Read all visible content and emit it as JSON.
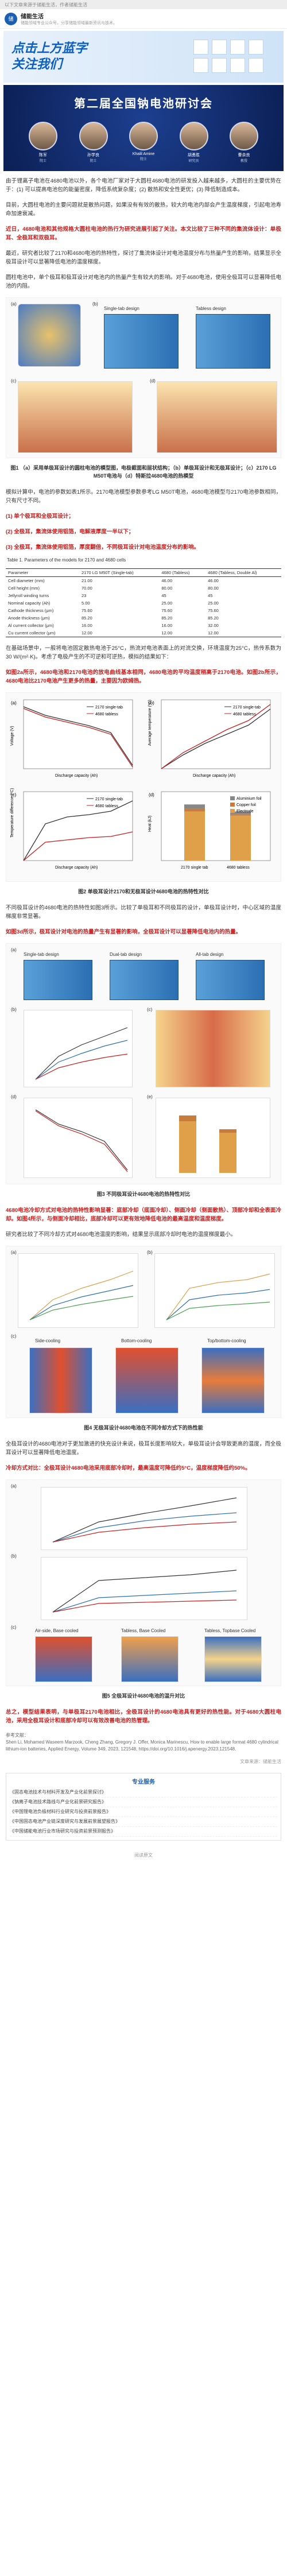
{
  "topbar": {
    "text": "以下文章来源于储能生活，作者储能生活"
  },
  "author": {
    "avatar_text": "储",
    "name": "储能生活",
    "desc": "储能领域专业公众号，分享储能领域最新资讯与技术。"
  },
  "banner": {
    "line1": "点击上方蓝字",
    "line2": "关注我们"
  },
  "conference": {
    "title": "第二届全国钠电池研讨会",
    "speakers": [
      {
        "name": "陈军",
        "role": "院士"
      },
      {
        "name": "孙学良",
        "role": "院士"
      },
      {
        "name": "Khalil Amine",
        "role": "院士"
      },
      {
        "name": "胡勇胜",
        "role": "研究员"
      },
      {
        "name": "曹余良",
        "role": "教授"
      }
    ]
  },
  "paragraphs": {
    "p1": "由于锂离子电池在4680电池以外，各个电池厂家对于大圆柱4680电池的研发投入越来越多，大圆柱的主要优势在于：(1) 可以提高电池包的能量密度，降低系统复杂度；(2) 散热和安全性更优；(3) 降低制造成本。",
    "p2": "目前，大圆柱电池的主要问题就是散热问题，如果没有有效的散热，较大的电池内部会产生温度梯度，引起电池寿命加速衰减。",
    "p3_hl": "近日，4680电池和其他规格大圆柱电池的热行为研究进展引起了关注。本文比较了三种不同的集流体设计：单极耳、全极耳和双极耳。",
    "p4": "最近，研究者比较了2170和4680电池的热特性，探讨了集流体设计对电池温度分布与热量产生的影响，结果显示全极耳设计可以显著降低电池的温度梯度。",
    "p5": "圆柱电池中，单个极耳和极耳设计对电池内的热量产生有较大的影响。对于4680电池，使用全极耳可以显著降低电池的内阻。",
    "p6": "模拟计算中，电池的参数如图表所示。2170电池模型参数参考LG M50T电池，4680电池模型与2170尺寸不同，其余参数相同。"
  },
  "figure1": {
    "caption": "图1 （a）采用单极耳设计的圆柱电池的模型图，电极截面和层状结构；（b）单极耳设计和无极耳设计；（c）2170 LG M50T电池与（d）特斯拉4680电池的热模型",
    "panels": [
      "(a)",
      "(b)",
      "(c)",
      "(d)"
    ],
    "labels": {
      "single_tab": "Single-tab design",
      "tabless": "Tabless design"
    }
  },
  "list1": {
    "intro": "模拟计算中，电池的参数如表1所示。2170电池模型参数参考LG M50T电池，4680电池模型与2170电池参数相同，只有尺寸不同。",
    "items": [
      "(1) 单个极耳和全极耳设计；",
      "(2) 全极耳，集流体使用铝箔，电解液厚度一半以下；",
      "(3) 全极耳，集流体使用铝箔，厚度翻倍，不同极耳设计对电池温度分布的影响。"
    ]
  },
  "table1": {
    "title": "Table 1. Parameters of the models for 2170 and 4680 cells",
    "headers": [
      "Parameter",
      "2170 LG M50T (Single-tab)",
      "4680 (Tabless)",
      "4680 (Tabless, Double Al)"
    ],
    "rows": [
      [
        "Cell diameter (mm)",
        "21.00",
        "46.00",
        "46.00"
      ],
      [
        "Cell height (mm)",
        "70.00",
        "80.00",
        "80.00"
      ],
      [
        "Jellyroll winding turns",
        "23",
        "45",
        "45"
      ],
      [
        "Nominal capacity (Ah)",
        "5.00",
        "25.00",
        "25.00"
      ],
      [
        "Cathode thickness (μm)",
        "75.60",
        "75.60",
        "75.60"
      ],
      [
        "Anode thickness (μm)",
        "85.20",
        "85.20",
        "85.20"
      ],
      [
        "Al current collector (μm)",
        "16.00",
        "16.00",
        "32.00"
      ],
      [
        "Cu current collector (μm)",
        "12.00",
        "12.00",
        "12.00"
      ]
    ]
  },
  "paragraphs2": {
    "p7": "在基础场景中，一般将电池固定散热电池于25°C，热流对电池表面上的对流交换，环境温度为25°C，热传系数为30 W/(m²·K)。考虑了电极产生的不可逆和可逆热，模拟的结果如下：",
    "p7_hl": "如图2a所示，4680电池和2170电池的放电曲线基本相同，4680电池的平均温度稍高于2170电池。如图2b所示，4680电池比2170电池产生更多的热量，主要因为欧姆热。"
  },
  "figure2": {
    "caption": "图2 单极耳设计2170和无极耳设计4680电池的热特性对比",
    "panels": [
      "(a)",
      "(b)",
      "(c)",
      "(d)"
    ],
    "legend": [
      "2170 single-tab",
      "4680 tabless"
    ],
    "xlabel": "Discharge capacity (Ah)",
    "ylabels": [
      "Voltage (V)",
      "Average temperature (°C)",
      "Temperature difference (°C)",
      "Heat (kJ)"
    ],
    "bar_categories": [
      "2170 single tab",
      "4680 tabless"
    ],
    "bar_legend": [
      "Aluminium foil",
      "Copper foil",
      "Electrode"
    ],
    "charts": {
      "voltage": {
        "ylim": [
          2.4,
          4.4
        ],
        "a": [
          [
            0,
            4.2
          ],
          [
            1,
            3.95
          ],
          [
            2,
            3.8
          ],
          [
            3,
            3.65
          ],
          [
            4,
            3.45
          ],
          [
            5,
            2.5
          ]
        ]
      },
      "temperature": {
        "ylim": [
          25,
          40
        ],
        "a": [
          [
            0,
            25
          ],
          [
            1,
            28
          ],
          [
            2,
            30.5
          ],
          [
            3,
            32.5
          ],
          [
            4,
            34.5
          ],
          [
            5,
            38
          ]
        ],
        "b": [
          [
            0,
            25
          ],
          [
            1,
            28.5
          ],
          [
            2,
            31
          ],
          [
            3,
            33.5
          ],
          [
            4,
            35.5
          ],
          [
            5,
            39
          ]
        ]
      },
      "temp_diff": {
        "ylim": [
          0,
          6
        ],
        "a": [
          [
            0,
            0
          ],
          [
            1,
            3.2
          ],
          [
            2,
            3.8
          ],
          [
            3,
            4.0
          ],
          [
            4,
            4.3
          ],
          [
            5,
            5.2
          ]
        ],
        "b": [
          [
            0,
            0
          ],
          [
            1,
            1.6
          ],
          [
            2,
            1.8
          ],
          [
            3,
            2.0
          ],
          [
            4,
            2.1
          ],
          [
            5,
            2.5
          ]
        ]
      },
      "heat_bars": [
        {
          "al": 0.3,
          "cu": 0.2,
          "el": 3.5
        },
        {
          "al": 0.2,
          "cu": 0.1,
          "el": 3.2
        }
      ]
    }
  },
  "paragraphs3": {
    "p8": "不同极耳设计的4680电池的热特性如图3所示。比较了单极耳和不同极耳的设计，单极耳设计时，中心区域的温度梯度非常显著。",
    "p8_hl": "如图3d所示，极耳设计对电池的热量产生有显著的影响，全极耳设计可以显著降低电池内的热量。"
  },
  "figure3": {
    "caption": "图3 不同极耳设计4680电池的热特性对比",
    "panels": [
      "(a)",
      "(b)",
      "(c)",
      "(d)",
      "(e)",
      "(f)"
    ],
    "labels": {
      "single_tab": "Single-tab design",
      "dual_tab": "Dual-tab design",
      "all_tab": "All-tab design"
    },
    "legend": [
      "4680 Single-tab",
      "4680 Dual-tab",
      "4680 Tabless"
    ],
    "xlabel": "Discharge capacity (Ah)",
    "bar_legend": [
      "Electrode",
      "Copper foil",
      "Aluminium foil"
    ]
  },
  "paragraphs4": {
    "p9_hl": "4680电池冷却方式对电池的热特性影响显著：底部冷却（底面冷却）、侧面冷却（侧面散热）、顶部冷却和全表面冷却。如图4所示，与侧面冷却相比，底部冷却可以更有效地降低电池的最高温度和温度梯度。",
    "p9": "研究者比较了不同冷却方式对4680电池温度的影响，结果显示底部冷却时电池的温度梯度最小。"
  },
  "figure4": {
    "caption": "图4 无极耳设计4680电池在不同冷却方式下的热性能",
    "panels": [
      "(a)",
      "(b)",
      "(c)"
    ],
    "labels": {
      "side": "Side-cooling",
      "bottom": "Bottom-cooling",
      "top": "Top/bottom-cooling"
    },
    "legend": [
      "Side cooling",
      "Bottom cooling",
      "Top cooling"
    ],
    "xlabel": "Discharge capacity (Ah)"
  },
  "paragraphs5": {
    "p10": "全极耳设计的4680电池对于更加激进的快充设计来说，极耳长度影响较大，单极耳设计会导致更高的温度，而全极耳设计可以显著降低电池温度。",
    "p10_hl": "冷却方式对比：全极耳设计4680电池采用底部冷却时，最高温度可降低约5°C，温度梯度降低约50%。"
  },
  "figure5": {
    "caption": "图5 全极耳设计4680电池的温升对比",
    "panels": [
      "(a)",
      "(b)",
      "(c)"
    ],
    "legend": [
      "Air-side, Side Cooled",
      "Tabless, Base Cooled",
      "Tabless, Top Cooled"
    ],
    "xlabel": "Discharge capacity (Ah)",
    "labels": {
      "a": "Air-side, Base cooled",
      "b": "Tabless, Base Cooled",
      "c": "Tabless, Topbase Cooled"
    }
  },
  "summary": {
    "text_hl": "总之，模型结果表明，与单极耳2170电池相比，全极耳设计的4680电池具有更好的热性能。对于4680大圆柱电池，采用全极耳设计和底部冷却可以有效改善电池的热管理。"
  },
  "reference": {
    "label": "参考文献：",
    "text": "Shen Li, Mohamed Waseem Marzook, Cheng Zhang, Gregory J. Offer, Monica Marinescu, How to enable large format 4680 cylindrical lithium-ion batteries, Applied Energy, Volume 349, 2023, 121548, https://doi.org/10.1016/j.apenergy.2023.121548."
  },
  "source": "文章来源：储能生活",
  "end_box": {
    "title": "专业服务",
    "items": [
      "《固态电池技术与材料开发及产业化前景探讨》",
      "《钠离子电池技术路线与产业化前景研究报告》",
      "《中国锂电池负极材料行业研究与投资前景报告》",
      "《中国固态电池产业链深度研究与发展前景展望报告》",
      "《中国储能电池行业市场研究与投资前景预测报告》"
    ]
  },
  "footer": "阅读原文"
}
